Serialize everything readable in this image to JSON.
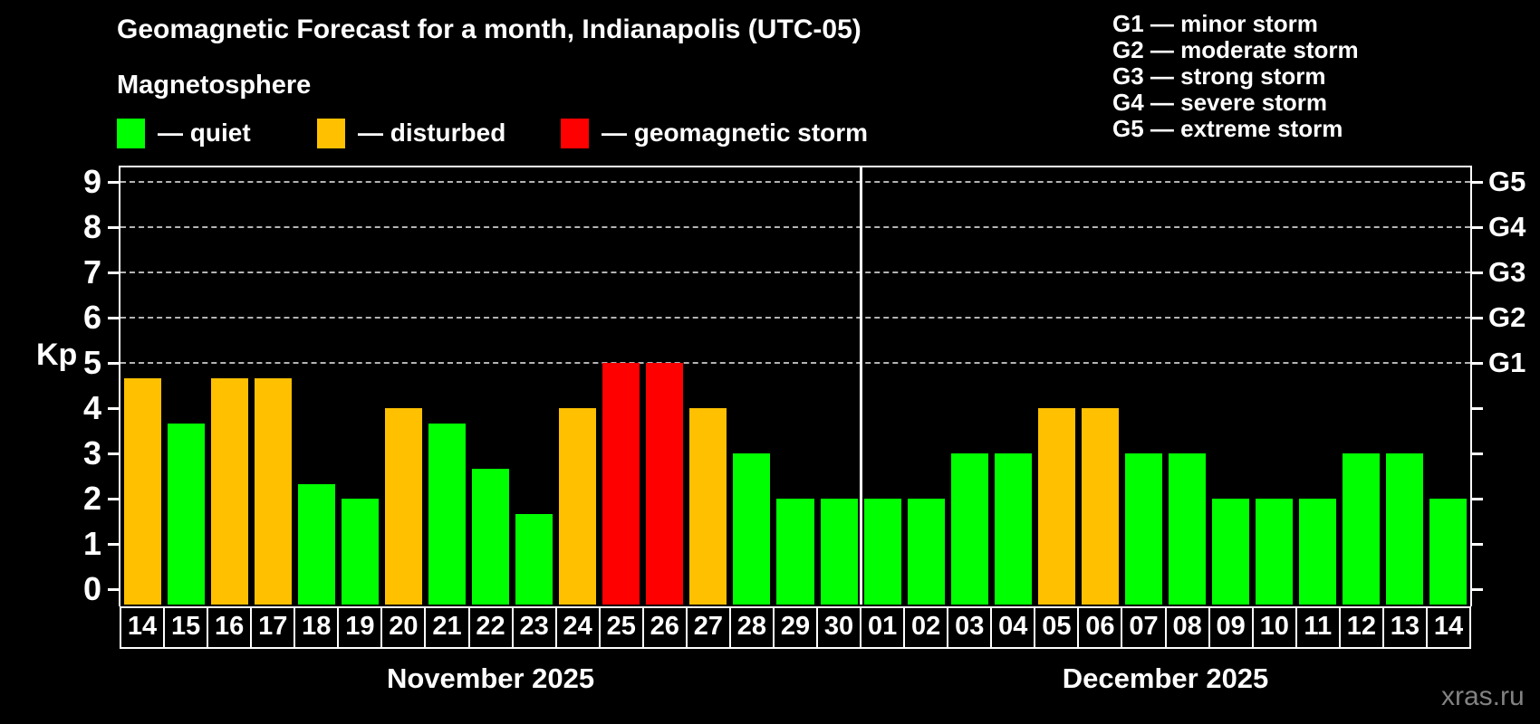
{
  "title": "Geomagnetic Forecast for a month, Indianapolis (UTC-05)",
  "subtitle": "Magnetosphere",
  "legend": {
    "items": [
      {
        "label": "— quiet",
        "status": "quiet"
      },
      {
        "label": "— disturbed",
        "status": "disturbed"
      },
      {
        "label": "— geomagnetic storm",
        "status": "storm"
      }
    ]
  },
  "g_legend": [
    "G1 — minor storm",
    "G2 — moderate storm",
    "G3 — strong storm",
    "G4 — severe storm",
    "G5 — extreme storm"
  ],
  "watermark": "xras.ru",
  "chart_data": {
    "type": "bar",
    "title": "Geomagnetic Forecast for a month, Indianapolis (UTC-05)",
    "ylabel": "Kp",
    "ylim": [
      0,
      9
    ],
    "yticks": [
      0,
      1,
      2,
      3,
      4,
      5,
      6,
      7,
      8,
      9
    ],
    "gridlines_kp": [
      5,
      6,
      7,
      8,
      9
    ],
    "grid": "horizontal dashed at Kp 5-9",
    "legend_position": "top",
    "right_axis": [
      {
        "label": "G1",
        "kp": 5
      },
      {
        "label": "G2",
        "kp": 6
      },
      {
        "label": "G3",
        "kp": 7
      },
      {
        "label": "G4",
        "kp": 8
      },
      {
        "label": "G5",
        "kp": 9
      }
    ],
    "colors": {
      "quiet": "#00ff00",
      "disturbed": "#ffc000",
      "storm": "#ff0000",
      "axis": "#ffffff",
      "gridline": "#b4b4b4",
      "background": "#000000"
    },
    "months": [
      {
        "label": "November 2025",
        "days": [
          {
            "date": "14",
            "kp": 4.67,
            "status": "disturbed"
          },
          {
            "date": "15",
            "kp": 3.67,
            "status": "quiet"
          },
          {
            "date": "16",
            "kp": 4.67,
            "status": "disturbed"
          },
          {
            "date": "17",
            "kp": 4.67,
            "status": "disturbed"
          },
          {
            "date": "18",
            "kp": 2.33,
            "status": "quiet"
          },
          {
            "date": "19",
            "kp": 2,
            "status": "quiet"
          },
          {
            "date": "20",
            "kp": 4,
            "status": "disturbed"
          },
          {
            "date": "21",
            "kp": 3.67,
            "status": "quiet"
          },
          {
            "date": "22",
            "kp": 2.67,
            "status": "quiet"
          },
          {
            "date": "23",
            "kp": 1.67,
            "status": "quiet"
          },
          {
            "date": "24",
            "kp": 4,
            "status": "disturbed"
          },
          {
            "date": "25",
            "kp": 5,
            "status": "storm"
          },
          {
            "date": "26",
            "kp": 5,
            "status": "storm"
          },
          {
            "date": "27",
            "kp": 4,
            "status": "disturbed"
          },
          {
            "date": "28",
            "kp": 3,
            "status": "quiet"
          },
          {
            "date": "29",
            "kp": 2,
            "status": "quiet"
          },
          {
            "date": "30",
            "kp": 2,
            "status": "quiet"
          }
        ]
      },
      {
        "label": "December 2025",
        "days": [
          {
            "date": "01",
            "kp": 2,
            "status": "quiet"
          },
          {
            "date": "02",
            "kp": 2,
            "status": "quiet"
          },
          {
            "date": "03",
            "kp": 3,
            "status": "quiet"
          },
          {
            "date": "04",
            "kp": 3,
            "status": "quiet"
          },
          {
            "date": "05",
            "kp": 4,
            "status": "disturbed"
          },
          {
            "date": "06",
            "kp": 4,
            "status": "disturbed"
          },
          {
            "date": "07",
            "kp": 3,
            "status": "quiet"
          },
          {
            "date": "08",
            "kp": 3,
            "status": "quiet"
          },
          {
            "date": "09",
            "kp": 2,
            "status": "quiet"
          },
          {
            "date": "10",
            "kp": 2,
            "status": "quiet"
          },
          {
            "date": "11",
            "kp": 2,
            "status": "quiet"
          },
          {
            "date": "12",
            "kp": 3,
            "status": "quiet"
          },
          {
            "date": "13",
            "kp": 3,
            "status": "quiet"
          },
          {
            "date": "14",
            "kp": 2,
            "status": "quiet"
          }
        ]
      }
    ]
  }
}
